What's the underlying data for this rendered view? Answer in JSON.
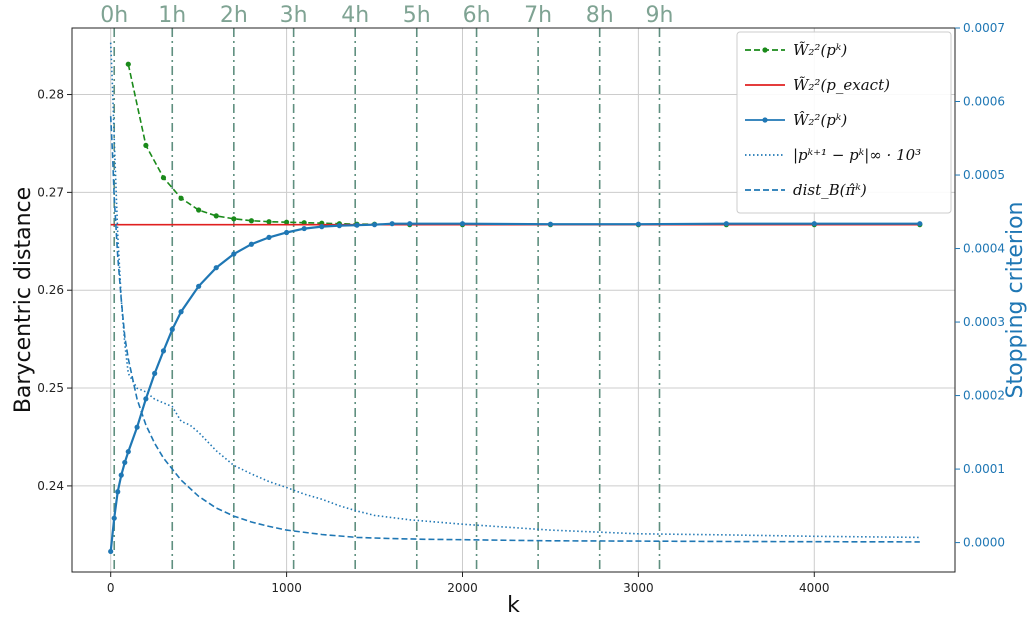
{
  "chart_data": {
    "type": "line",
    "xlabel": "k",
    "ylabel": "Barycentric distance",
    "ylabel_right": "Stopping criterion",
    "xlim": [
      -220,
      4800
    ],
    "ylim": [
      0.2312,
      0.2868
    ],
    "ylim_right": [
      -4e-05,
      0.0007
    ],
    "x_ticks": [
      0,
      1000,
      2000,
      3000,
      4000
    ],
    "x_tick_labels": [
      "0",
      "1000",
      "2000",
      "3000",
      "4000"
    ],
    "y_ticks": [
      0.24,
      0.25,
      0.26,
      0.27,
      0.28
    ],
    "y_tick_labels": [
      "0.24",
      "0.25",
      "0.26",
      "0.27",
      "0.28"
    ],
    "y_right_ticks": [
      0,
      0.0001,
      0.0002,
      0.0003,
      0.0004,
      0.0005,
      0.0006,
      0.0007
    ],
    "y_right_tick_labels": [
      "0.0000",
      "0.0001",
      "0.0002",
      "0.0003",
      "0.0004",
      "0.0005",
      "0.0006",
      "0.0007"
    ],
    "grid": true,
    "legend_position": "top-right",
    "hour_markers": {
      "labels": [
        "0h",
        "1h",
        "2h",
        "3h",
        "4h",
        "5h",
        "6h",
        "7h",
        "8h",
        "9h"
      ],
      "x": [
        20,
        350,
        700,
        1040,
        1390,
        1740,
        2080,
        2430,
        2780,
        3120
      ],
      "color": "#5f8f7f"
    },
    "series": [
      {
        "name": "W̃²₂(pᵏ)",
        "legend_label": "W̃₂²(pᵏ)",
        "axis": "left",
        "color": "#1a8a1a",
        "style": "dashed-markers",
        "x": [
          100,
          200,
          300,
          400,
          500,
          600,
          700,
          800,
          900,
          1000,
          1100,
          1200,
          1300,
          1400,
          1500,
          1700,
          2000,
          2500,
          3000,
          3500,
          4000,
          4600
        ],
        "y": [
          0.2831,
          0.2748,
          0.2715,
          0.2694,
          0.2682,
          0.2676,
          0.2673,
          0.2671,
          0.267,
          0.26695,
          0.2669,
          0.26685,
          0.2668,
          0.26675,
          0.26675,
          0.2667,
          0.2667,
          0.2667,
          0.2667,
          0.2667,
          0.2667,
          0.2667
        ]
      },
      {
        "name": "W̃²₂(p_exact)",
        "legend_label": "W̃₂²(p_exact)",
        "axis": "left",
        "color": "#e02020",
        "style": "solid",
        "x": [
          0,
          4600
        ],
        "y": [
          0.2667,
          0.2667
        ]
      },
      {
        "name": "Ŵ²₂(pᵏ)",
        "legend_label": "Ŵ₂²(pᵏ)",
        "axis": "left",
        "color": "#1f77b4",
        "style": "solid-markers",
        "x": [
          0,
          20,
          40,
          60,
          80,
          100,
          150,
          200,
          250,
          300,
          350,
          400,
          500,
          600,
          700,
          800,
          900,
          1000,
          1100,
          1200,
          1300,
          1400,
          1500,
          1600,
          1700,
          2000,
          2500,
          3000,
          3500,
          4000,
          4600
        ],
        "y": [
          0.2333,
          0.2367,
          0.2394,
          0.2411,
          0.2424,
          0.2435,
          0.246,
          0.2489,
          0.2515,
          0.2538,
          0.256,
          0.2578,
          0.2604,
          0.2623,
          0.2637,
          0.2647,
          0.2654,
          0.2659,
          0.2663,
          0.2665,
          0.2666,
          0.26665,
          0.2667,
          0.2668,
          0.2668,
          0.2668,
          0.26675,
          0.26675,
          0.2668,
          0.2668,
          0.2668
        ]
      },
      {
        "name": "|pᵏ⁺¹ − pᵏ|∞ · 10³",
        "legend_label": "|pᵏ⁺¹ − pᵏ|∞ · 10³",
        "axis": "right",
        "color": "#1f77b4",
        "style": "dotted",
        "x": [
          0,
          10,
          20,
          40,
          60,
          80,
          100,
          150,
          200,
          250,
          300,
          350,
          400,
          450,
          500,
          600,
          700,
          800,
          900,
          1000,
          1100,
          1200,
          1300,
          1400,
          1500,
          1700,
          2000,
          2500,
          3000,
          3500,
          4000,
          4600
        ],
        "y": [
          0.00068,
          0.00062,
          0.00055,
          0.00042,
          0.00033,
          0.00027,
          0.00023,
          0.00021,
          0.000205,
          0.000195,
          0.00019,
          0.000185,
          0.000165,
          0.00016,
          0.00015,
          0.000125,
          0.000105,
          9.35e-05,
          8.3e-05,
          7.5e-05,
          6.6e-05,
          5.9e-05,
          5e-05,
          4.3e-05,
          3.7e-05,
          3.1e-05,
          2.5e-05,
          1.7e-05,
          1.2e-05,
          1.05e-05,
          8.5e-06,
          7e-06
        ]
      },
      {
        "name": "dist_B(π̂ᵏ)",
        "legend_label": "dist_B(π̂ᵏ)",
        "axis": "right",
        "color": "#1f77b4",
        "style": "dashed",
        "x": [
          0,
          10,
          20,
          40,
          60,
          80,
          100,
          150,
          200,
          250,
          300,
          350,
          400,
          500,
          600,
          700,
          800,
          900,
          1000,
          1200,
          1400,
          1600,
          1800,
          2000,
          2500,
          3000,
          3500,
          4000,
          4600
        ],
        "y": [
          0.00058,
          0.00053,
          0.00047,
          0.00039,
          0.00033,
          0.00028,
          0.00025,
          0.000195,
          0.00016,
          0.000135,
          0.000115,
          0.0001,
          8.5e-05,
          6.3e-05,
          4.7e-05,
          3.6e-05,
          2.8e-05,
          2.2e-05,
          1.7e-05,
          1.1e-05,
          7e-06,
          5.5e-06,
          4.5e-06,
          4e-06,
          2.5e-06,
          2e-06,
          1.5e-06,
          1.2e-06,
          1e-06
        ]
      }
    ]
  }
}
